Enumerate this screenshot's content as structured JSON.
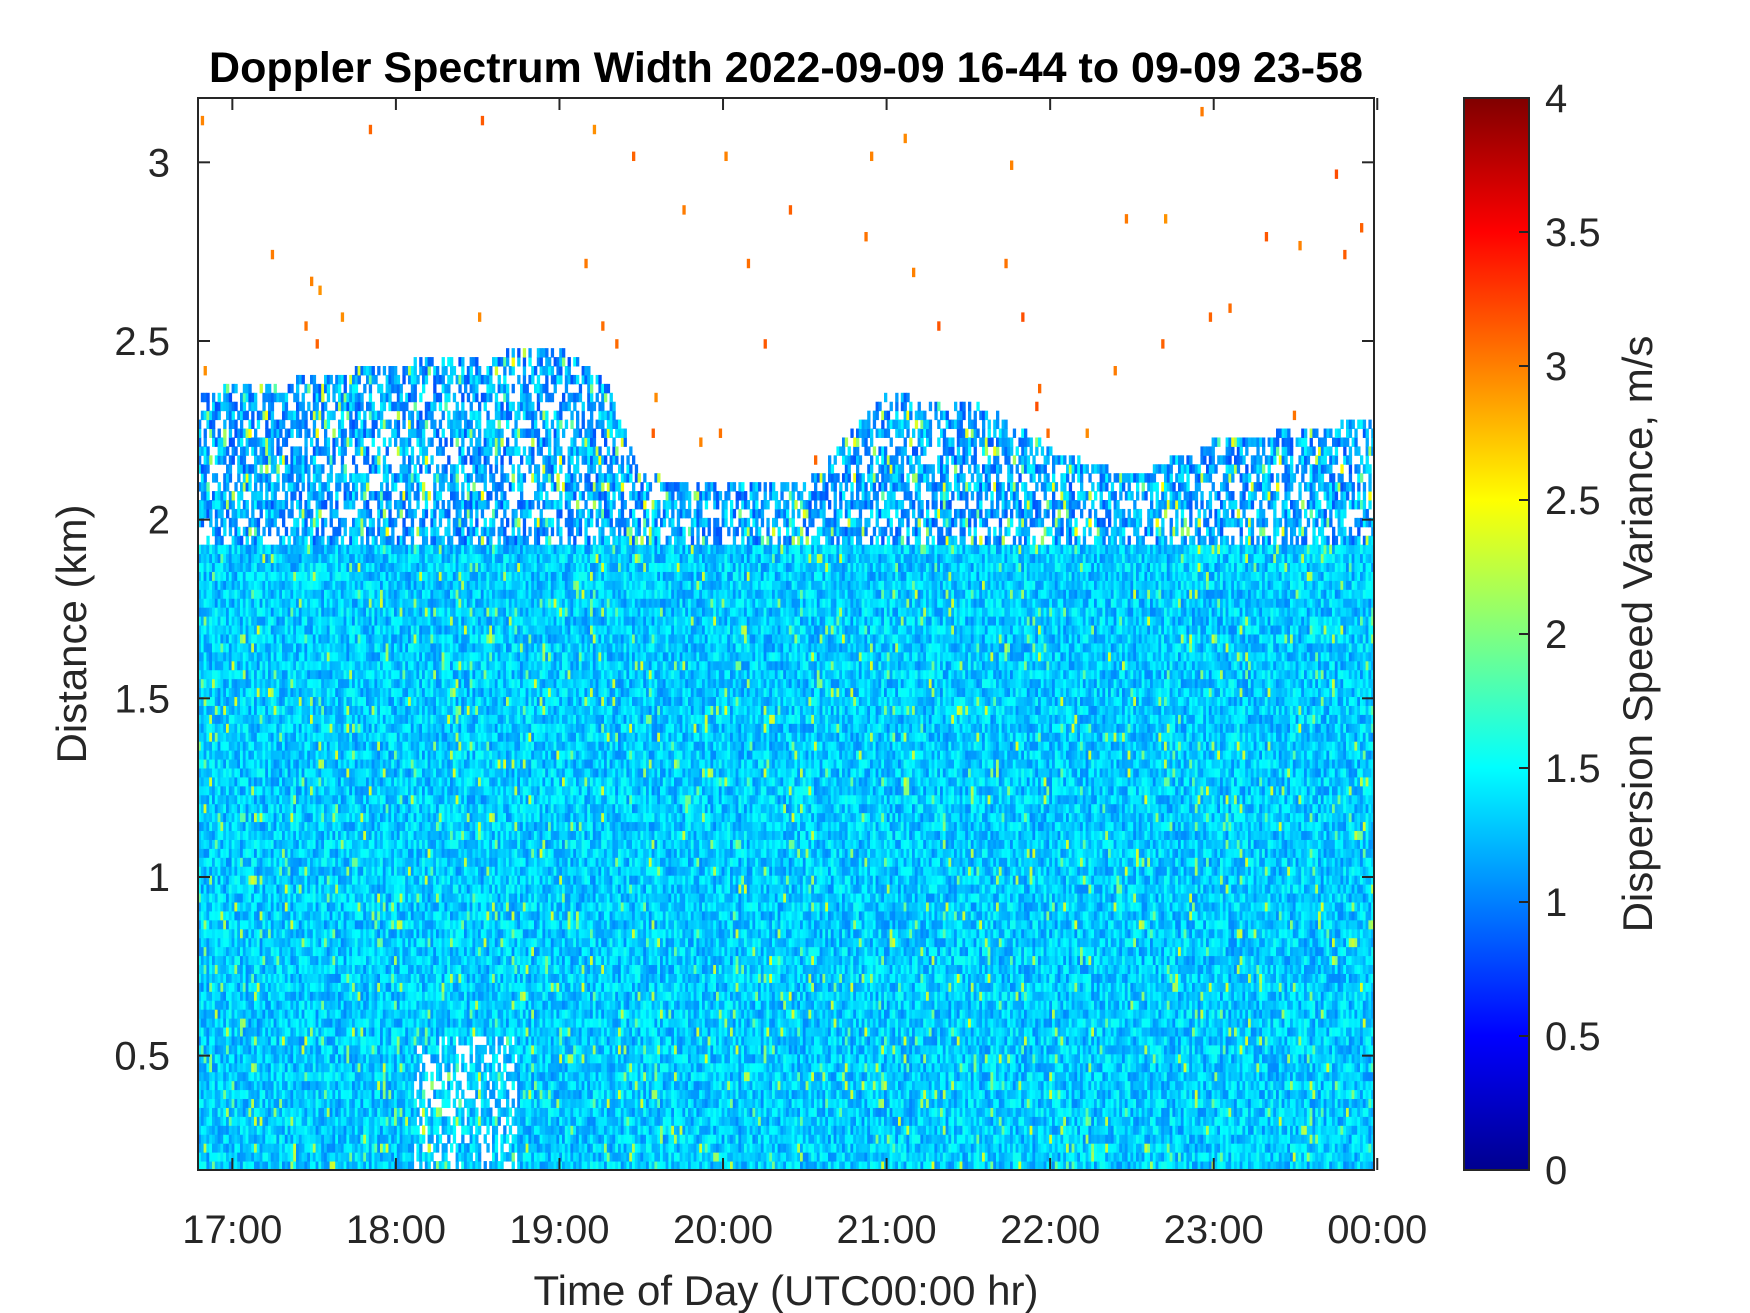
{
  "chart_data": {
    "type": "heatmap",
    "title": "Doppler Spectrum Width 2022-09-09 16-44 to 09-09 23-58",
    "xlabel": "Time of Day (UTC00:00 hr)",
    "ylabel": "Distance (km)",
    "colorbar_label": "Dispersion Speed Variance, m/s",
    "colormap": "jet",
    "x_ticks": [
      {
        "value": 17.0,
        "label": "17:00"
      },
      {
        "value": 18.0,
        "label": "18:00"
      },
      {
        "value": 19.0,
        "label": "19:00"
      },
      {
        "value": 20.0,
        "label": "20:00"
      },
      {
        "value": 21.0,
        "label": "21:00"
      },
      {
        "value": 22.0,
        "label": "22:00"
      },
      {
        "value": 23.0,
        "label": "23:00"
      },
      {
        "value": 24.0,
        "label": "00:00"
      }
    ],
    "y_ticks": [
      {
        "value": 0.5,
        "label": "0.5"
      },
      {
        "value": 1.0,
        "label": "1"
      },
      {
        "value": 1.5,
        "label": "1.5"
      },
      {
        "value": 2.0,
        "label": "2"
      },
      {
        "value": 2.5,
        "label": "2.5"
      },
      {
        "value": 3.0,
        "label": "3"
      }
    ],
    "c_ticks": [
      {
        "value": 0,
        "label": "0"
      },
      {
        "value": 0.5,
        "label": "0.5"
      },
      {
        "value": 1,
        "label": "1"
      },
      {
        "value": 1.5,
        "label": "1.5"
      },
      {
        "value": 2,
        "label": "2"
      },
      {
        "value": 2.5,
        "label": "2.5"
      },
      {
        "value": 3,
        "label": "3"
      },
      {
        "value": 3.5,
        "label": "3.5"
      },
      {
        "value": 4,
        "label": "4"
      }
    ],
    "xlim": [
      16.79,
      23.98
    ],
    "ylim": [
      0.18,
      3.18
    ],
    "clim": [
      0,
      4
    ],
    "grid": false,
    "colorbar_position": "right",
    "data_summary": {
      "typical_value_below_1_9km": 1.3,
      "layer_top_km_by_time": [
        {
          "t": 16.8,
          "top": 2.36
        },
        {
          "t": 17.5,
          "top": 2.4
        },
        {
          "t": 18.2,
          "top": 2.45
        },
        {
          "t": 19.0,
          "top": 2.48
        },
        {
          "t": 19.3,
          "top": 2.38
        },
        {
          "t": 19.5,
          "top": 2.12
        },
        {
          "t": 20.5,
          "top": 2.1
        },
        {
          "t": 21.0,
          "top": 2.35
        },
        {
          "t": 21.6,
          "top": 2.32
        },
        {
          "t": 22.0,
          "top": 2.2
        },
        {
          "t": 22.5,
          "top": 2.12
        },
        {
          "t": 23.0,
          "top": 2.22
        },
        {
          "t": 23.98,
          "top": 2.28
        }
      ]
    }
  }
}
